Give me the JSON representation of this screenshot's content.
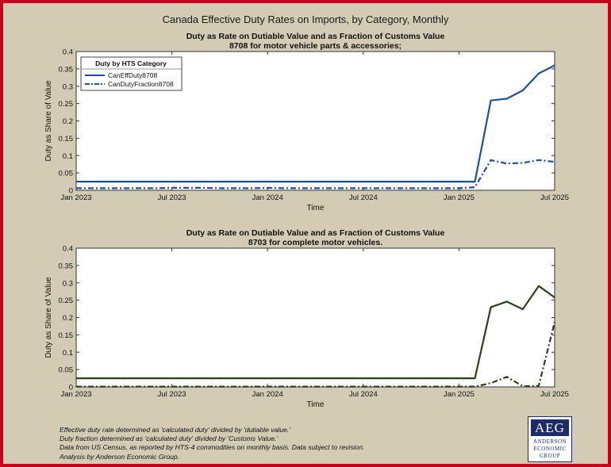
{
  "title": "Canada Effective Duty Rates on Imports, by Category, Monthly",
  "chart_data": [
    {
      "type": "line",
      "title": "Duty as Rate on Dutiable Value and as Fraction of Customs Value",
      "subtitle": "8708 for motor vehicle parts & accessories;",
      "xlabel": "Time",
      "ylabel": "Duty as Share of Value",
      "ylim": [
        0,
        0.4
      ],
      "yticks": [
        "0",
        "0.05",
        "0.1",
        "0.15",
        "0.2",
        "0.25",
        "0.3",
        "0.35",
        "0.4"
      ],
      "xticks": [
        "Jan 2023",
        "Jul 2023",
        "Jan 2024",
        "Jul 2024",
        "Jan 2025",
        "Jul 2025"
      ],
      "legend_title": "Duty by HTS Category",
      "legend_position": "top-left",
      "x": [
        "2023-01",
        "2023-02",
        "2023-03",
        "2023-04",
        "2023-05",
        "2023-06",
        "2023-07",
        "2023-08",
        "2023-09",
        "2023-10",
        "2023-11",
        "2023-12",
        "2024-01",
        "2024-02",
        "2024-03",
        "2024-04",
        "2024-05",
        "2024-06",
        "2024-07",
        "2024-08",
        "2024-09",
        "2024-10",
        "2024-11",
        "2024-12",
        "2025-01",
        "2025-02",
        "2025-03",
        "2025-04",
        "2025-05",
        "2025-06",
        "2025-07"
      ],
      "series": [
        {
          "name": "CanEffDuty8708",
          "color": "#1f4e9c",
          "style": "solid",
          "values": [
            0.025,
            0.025,
            0.025,
            0.025,
            0.025,
            0.025,
            0.025,
            0.025,
            0.025,
            0.025,
            0.025,
            0.025,
            0.025,
            0.025,
            0.025,
            0.025,
            0.025,
            0.025,
            0.025,
            0.025,
            0.025,
            0.025,
            0.025,
            0.025,
            0.025,
            0.025,
            0.259,
            0.264,
            0.288,
            0.337,
            0.36
          ]
        },
        {
          "name": "CanDutyFraction8708",
          "color": "#1f4e9c",
          "style": "dashdot",
          "values": [
            0.006,
            0.006,
            0.006,
            0.006,
            0.006,
            0.006,
            0.007,
            0.007,
            0.007,
            0.006,
            0.006,
            0.006,
            0.007,
            0.006,
            0.006,
            0.006,
            0.006,
            0.006,
            0.006,
            0.006,
            0.006,
            0.006,
            0.006,
            0.006,
            0.006,
            0.009,
            0.087,
            0.077,
            0.079,
            0.087,
            0.082
          ]
        }
      ]
    },
    {
      "type": "line",
      "title": "Duty as Rate on Dutiable Value and as Fraction of Customs Value",
      "subtitle": "8703 for complete motor vehicles.",
      "xlabel": "Time",
      "ylabel": "Duty as Share of Value",
      "ylim": [
        0,
        0.4
      ],
      "yticks": [
        "0",
        "0.05",
        "0.1",
        "0.15",
        "0.2",
        "0.25",
        "0.3",
        "0.35",
        "0.4"
      ],
      "xticks": [
        "Jan 2023",
        "Jul 2023",
        "Jan 2024",
        "Jul 2024",
        "Jan 2025",
        "Jul 2025"
      ],
      "x": [
        "2023-01",
        "2023-02",
        "2023-03",
        "2023-04",
        "2023-05",
        "2023-06",
        "2023-07",
        "2023-08",
        "2023-09",
        "2023-10",
        "2023-11",
        "2023-12",
        "2024-01",
        "2024-02",
        "2024-03",
        "2024-04",
        "2024-05",
        "2024-06",
        "2024-07",
        "2024-08",
        "2024-09",
        "2024-10",
        "2024-11",
        "2024-12",
        "2025-01",
        "2025-02",
        "2025-03",
        "2025-04",
        "2025-05",
        "2025-06",
        "2025-07"
      ],
      "series": [
        {
          "color": "#2e3f1c",
          "style": "solid",
          "values": [
            0.025,
            0.025,
            0.025,
            0.025,
            0.025,
            0.025,
            0.025,
            0.025,
            0.025,
            0.025,
            0.025,
            0.025,
            0.025,
            0.025,
            0.025,
            0.025,
            0.025,
            0.025,
            0.025,
            0.025,
            0.025,
            0.025,
            0.025,
            0.025,
            0.025,
            0.025,
            0.23,
            0.246,
            0.224,
            0.291,
            0.258
          ]
        },
        {
          "color": "#2e3f1c",
          "style": "dashdot",
          "values": [
            0.001,
            0.001,
            0.001,
            0.001,
            0.001,
            0.001,
            0.001,
            0.001,
            0.001,
            0.001,
            0.001,
            0.001,
            0.001,
            0.001,
            0.001,
            0.001,
            0.001,
            0.001,
            0.001,
            0.001,
            0.001,
            0.001,
            0.001,
            0.001,
            0.001,
            0.001,
            0.011,
            0.029,
            0.002,
            0.003,
            0.187
          ]
        }
      ]
    }
  ],
  "notes": [
    "Effective duty rate determined as 'calculated duty' divided by 'dutiable value.'",
    "Duty fraction determined as 'calculated duty' divided by 'Customs Value.'",
    "Data from US Census, as reported by HTS-4 commodities on monthly basis. Data subject to revision.",
    "Analysis by Anderson Economic Group."
  ],
  "logo": {
    "mark": "AEG",
    "lines": [
      "ANDERSON",
      "ECONOMIC",
      "GROUP"
    ]
  }
}
